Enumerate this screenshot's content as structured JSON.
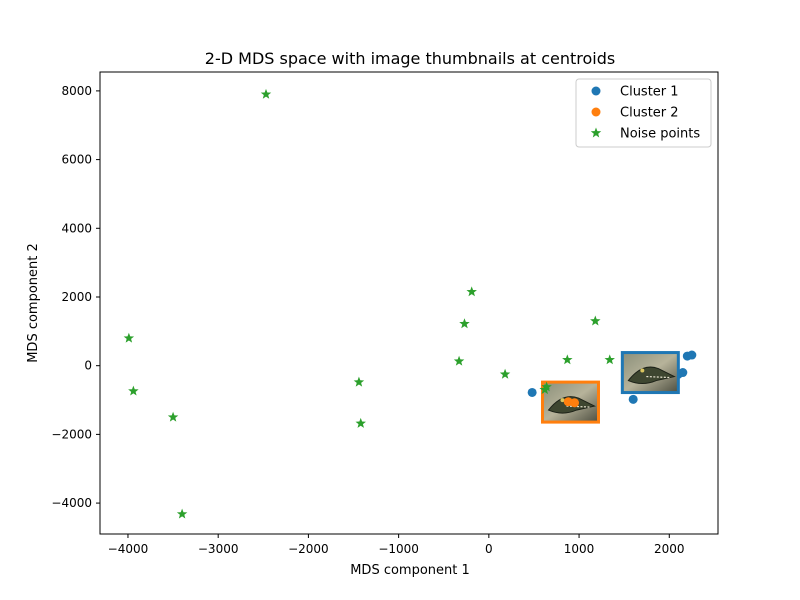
{
  "chart_data": {
    "type": "scatter",
    "title": "2-D MDS space with image thumbnails at centroids",
    "xlabel": "MDS component 1",
    "ylabel": "MDS component 2",
    "xlim": [
      -4310,
      2540
    ],
    "ylim": [
      -4900,
      8550
    ],
    "xticks": [
      -4000,
      -3000,
      -2000,
      -1000,
      0,
      1000,
      2000
    ],
    "xtick_labels": [
      "−4000",
      "−3000",
      "−2000",
      "−1000",
      "0",
      "1000",
      "2000"
    ],
    "yticks": [
      -4000,
      -2000,
      0,
      2000,
      4000,
      6000,
      8000
    ],
    "ytick_labels": [
      "−4000",
      "−2000",
      "0",
      "2000",
      "4000",
      "6000",
      "8000"
    ],
    "grid": false,
    "legend_position": "top-right",
    "series": [
      {
        "name": "Cluster 1",
        "marker": "circle",
        "color": "#1f77b4",
        "x": [
          480,
          1600,
          1550,
          1620,
          1700,
          2000,
          2050,
          2100,
          2150,
          2200,
          2250
        ],
        "y": [
          -780,
          -980,
          -600,
          -300,
          200,
          50,
          -150,
          -250,
          -200,
          280,
          310
        ]
      },
      {
        "name": "Cluster 2",
        "marker": "circle",
        "color": "#ff7f0e",
        "x": [
          880,
          950
        ],
        "y": [
          -1050,
          -1080
        ]
      },
      {
        "name": "Noise points",
        "marker": "star",
        "color": "#2ca02c",
        "x": [
          -2470,
          -3990,
          -3940,
          -3500,
          -3400,
          -1440,
          -1420,
          -190,
          -270,
          -330,
          180,
          870,
          1180,
          1340,
          640,
          620
        ],
        "y": [
          7900,
          800,
          -740,
          -1500,
          -4320,
          -480,
          -1680,
          2150,
          1220,
          130,
          -250,
          170,
          1300,
          170,
          -620,
          -700
        ]
      }
    ],
    "thumbnails": [
      {
        "cluster": "Cluster 1",
        "x_center": 1790,
        "y_center": -200,
        "border_color": "#1f77b4",
        "icon": "crocodile-thumbnail"
      },
      {
        "cluster": "Cluster 2",
        "x_center": 905,
        "y_center": -1060,
        "border_color": "#ff7f0e",
        "icon": "crocodile-thumbnail"
      }
    ]
  }
}
